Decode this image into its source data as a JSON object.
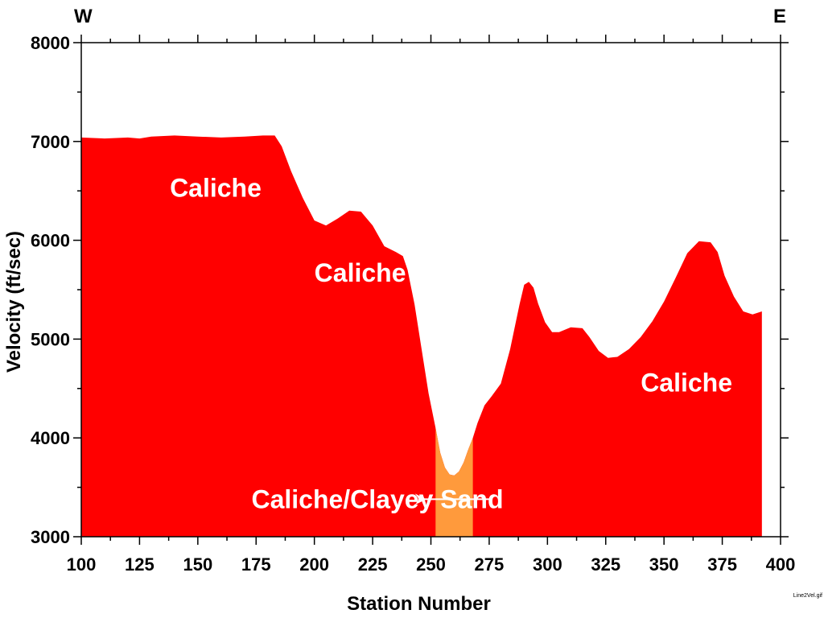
{
  "chart_data": {
    "type": "area",
    "xlabel": "Station Number",
    "ylabel": "Velocity (ft/sec)",
    "xlim": [
      100,
      400
    ],
    "ylim": [
      3000,
      8000
    ],
    "x_ticks": [
      100,
      125,
      150,
      175,
      200,
      225,
      250,
      275,
      300,
      325,
      350,
      375,
      400
    ],
    "y_ticks": [
      3000,
      4000,
      5000,
      6000,
      7000,
      8000
    ],
    "grid": false,
    "left_label": "W",
    "right_label": "E",
    "colors": {
      "caliche": "#ff0000",
      "clayey_sand": "#ff9a3c"
    },
    "series": [
      {
        "x": [
          100,
          110,
          120,
          125,
          130,
          140,
          150,
          160,
          170,
          178,
          183,
          186,
          190,
          195,
          200,
          205,
          210,
          215,
          220,
          225,
          230,
          235,
          238,
          240,
          243,
          246,
          249,
          252,
          254,
          256,
          258,
          260,
          262,
          264,
          266,
          268,
          270,
          273,
          276,
          280,
          284,
          288,
          290,
          292,
          294,
          296,
          299,
          302,
          305,
          310,
          315,
          318,
          322,
          326,
          330,
          335,
          340,
          345,
          350,
          355,
          360,
          365,
          370,
          373,
          376,
          380,
          384,
          388,
          392
        ],
        "y": [
          7040,
          7030,
          7040,
          7030,
          7050,
          7060,
          7050,
          7040,
          7050,
          7060,
          7060,
          6950,
          6700,
          6430,
          6200,
          6150,
          6220,
          6300,
          6290,
          6150,
          5940,
          5880,
          5840,
          5700,
          5350,
          4900,
          4450,
          4100,
          3850,
          3700,
          3630,
          3620,
          3660,
          3750,
          3880,
          4000,
          4150,
          4330,
          4420,
          4550,
          4900,
          5350,
          5550,
          5580,
          5520,
          5360,
          5170,
          5070,
          5070,
          5120,
          5110,
          5020,
          4880,
          4810,
          4820,
          4900,
          5020,
          5180,
          5380,
          5620,
          5870,
          5990,
          5980,
          5880,
          5640,
          5430,
          5280,
          5250,
          5280
        ]
      }
    ],
    "highlight_range": [
      252,
      268
    ],
    "annotations": [
      {
        "text": "Caliche",
        "x": 138,
        "y": 6530
      },
      {
        "text": "Caliche",
        "x": 200,
        "y": 5670
      },
      {
        "text": "Caliche",
        "x": 340,
        "y": 4560
      },
      {
        "text": "Caliche/Clayey Sand",
        "x": 173,
        "y": 3380,
        "arrow_to": [
          248,
          3380
        ]
      }
    ],
    "corner_note": "Line2Vel.gif"
  }
}
